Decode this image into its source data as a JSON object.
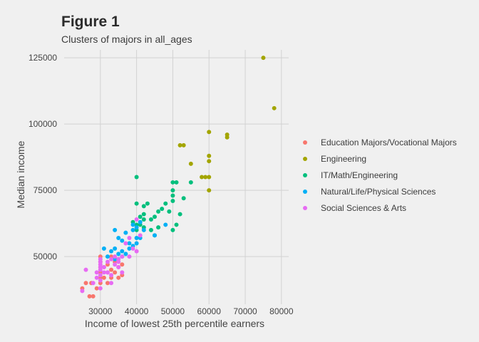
{
  "chart_data": {
    "type": "scatter",
    "title": "Figure 1",
    "subtitle": "Clusters of majors in all_ages",
    "xlabel": "Income of lowest 25th percentile earners",
    "ylabel": "Median income",
    "xlim": [
      20000,
      82000
    ],
    "ylim": [
      32000,
      128000
    ],
    "x_ticks": [
      {
        "value": 30000,
        "label": "30000"
      },
      {
        "value": 40000,
        "label": "40000"
      },
      {
        "value": 50000,
        "label": "50000"
      },
      {
        "value": 60000,
        "label": "60000"
      },
      {
        "value": 70000,
        "label": "70000"
      },
      {
        "value": 80000,
        "label": "80000"
      }
    ],
    "y_ticks": [
      {
        "value": 50000,
        "label": "50000"
      },
      {
        "value": 75000,
        "label": "75000"
      },
      {
        "value": 100000,
        "label": "100000"
      },
      {
        "value": 125000,
        "label": "125000"
      }
    ],
    "grid": true,
    "legend_position": "right",
    "series": [
      {
        "name": "Education Majors/Vocational Majors",
        "color": "#F8766D",
        "points": [
          [
            25000,
            38000
          ],
          [
            26000,
            40000
          ],
          [
            27000,
            35000
          ],
          [
            27500,
            40000
          ],
          [
            28000,
            35000
          ],
          [
            29000,
            38000
          ],
          [
            30000,
            40000
          ],
          [
            30000,
            42000
          ],
          [
            30000,
            44000
          ],
          [
            30000,
            46000
          ],
          [
            30000,
            48000
          ],
          [
            30000,
            50000
          ],
          [
            31000,
            42000
          ],
          [
            31000,
            46000
          ],
          [
            32000,
            40000
          ],
          [
            32000,
            44000
          ],
          [
            32000,
            47000
          ],
          [
            33000,
            42000
          ],
          [
            33000,
            45000
          ],
          [
            33000,
            50000
          ],
          [
            34000,
            44000
          ],
          [
            34000,
            48000
          ],
          [
            35000,
            42000
          ],
          [
            35000,
            46000
          ],
          [
            36000,
            47000
          ],
          [
            36000,
            43000
          ]
        ]
      },
      {
        "name": "Engineering",
        "color": "#A3A500",
        "points": [
          [
            75000,
            125000
          ],
          [
            78000,
            106000
          ],
          [
            60000,
            97000
          ],
          [
            65000,
            96000
          ],
          [
            65000,
            95000
          ],
          [
            52000,
            92000
          ],
          [
            53000,
            92000
          ],
          [
            60000,
            88000
          ],
          [
            60000,
            86000
          ],
          [
            55000,
            85000
          ],
          [
            58000,
            80000
          ],
          [
            59000,
            80000
          ],
          [
            60000,
            80000
          ],
          [
            60000,
            75000
          ]
        ]
      },
      {
        "name": "IT/Math/Engineering",
        "color": "#00BF7D",
        "points": [
          [
            40000,
            80000
          ],
          [
            50000,
            78000
          ],
          [
            51000,
            78000
          ],
          [
            55000,
            78000
          ],
          [
            50000,
            75000
          ],
          [
            50000,
            73000
          ],
          [
            53000,
            72000
          ],
          [
            50000,
            71000
          ],
          [
            43000,
            70000
          ],
          [
            48000,
            70000
          ],
          [
            40000,
            70000
          ],
          [
            42000,
            69000
          ],
          [
            47000,
            68000
          ],
          [
            46000,
            67000
          ],
          [
            49000,
            67000
          ],
          [
            42000,
            66000
          ],
          [
            45000,
            65000
          ],
          [
            42000,
            64000
          ],
          [
            44000,
            64000
          ],
          [
            39000,
            63000
          ],
          [
            40000,
            62000
          ],
          [
            41000,
            62000
          ],
          [
            42000,
            61000
          ],
          [
            46000,
            61000
          ],
          [
            44000,
            60000
          ],
          [
            50000,
            60000
          ],
          [
            40000,
            60000
          ],
          [
            45000,
            58000
          ],
          [
            51000,
            62000
          ],
          [
            52000,
            66000
          ],
          [
            41000,
            65000
          ]
        ]
      },
      {
        "name": "Natural/Life/Physical Sciences",
        "color": "#00B0F6",
        "points": [
          [
            41000,
            63000
          ],
          [
            39000,
            62000
          ],
          [
            40000,
            61000
          ],
          [
            34000,
            60000
          ],
          [
            42000,
            60000
          ],
          [
            37000,
            59000
          ],
          [
            48000,
            62000
          ],
          [
            45000,
            58000
          ],
          [
            35000,
            57000
          ],
          [
            36000,
            56000
          ],
          [
            38000,
            55000
          ],
          [
            40000,
            57000
          ],
          [
            31000,
            53000
          ],
          [
            33000,
            52000
          ],
          [
            34000,
            53000
          ],
          [
            36000,
            52000
          ],
          [
            38000,
            53000
          ],
          [
            39000,
            54000
          ],
          [
            40000,
            55000
          ],
          [
            35000,
            51000
          ],
          [
            37000,
            51000
          ],
          [
            32000,
            50000
          ],
          [
            34000,
            49000
          ],
          [
            36000,
            50000
          ],
          [
            41000,
            57000
          ],
          [
            39000,
            60000
          ]
        ]
      },
      {
        "name": "Social Sciences & Arts",
        "color": "#E76BF3",
        "points": [
          [
            25000,
            37000
          ],
          [
            26000,
            45000
          ],
          [
            28000,
            40000
          ],
          [
            29000,
            42000
          ],
          [
            29000,
            44000
          ],
          [
            30000,
            45000
          ],
          [
            30000,
            46000
          ],
          [
            30000,
            47000
          ],
          [
            30000,
            48000
          ],
          [
            30000,
            49000
          ],
          [
            30000,
            43000
          ],
          [
            30000,
            41000
          ],
          [
            30000,
            38000
          ],
          [
            31000,
            44000
          ],
          [
            31000,
            46000
          ],
          [
            32000,
            48000
          ],
          [
            32000,
            44000
          ],
          [
            33000,
            43000
          ],
          [
            33000,
            49000
          ],
          [
            33000,
            40000
          ],
          [
            34000,
            47000
          ],
          [
            34000,
            50000
          ],
          [
            35000,
            46000
          ],
          [
            35000,
            49000
          ],
          [
            36000,
            50000
          ],
          [
            36000,
            44000
          ],
          [
            37000,
            55000
          ],
          [
            38000,
            50000
          ],
          [
            38000,
            57000
          ],
          [
            39000,
            53000
          ],
          [
            40000,
            52000
          ],
          [
            41000,
            58000
          ],
          [
            40000,
            64000
          ],
          [
            35000,
            48000
          ]
        ]
      }
    ]
  }
}
